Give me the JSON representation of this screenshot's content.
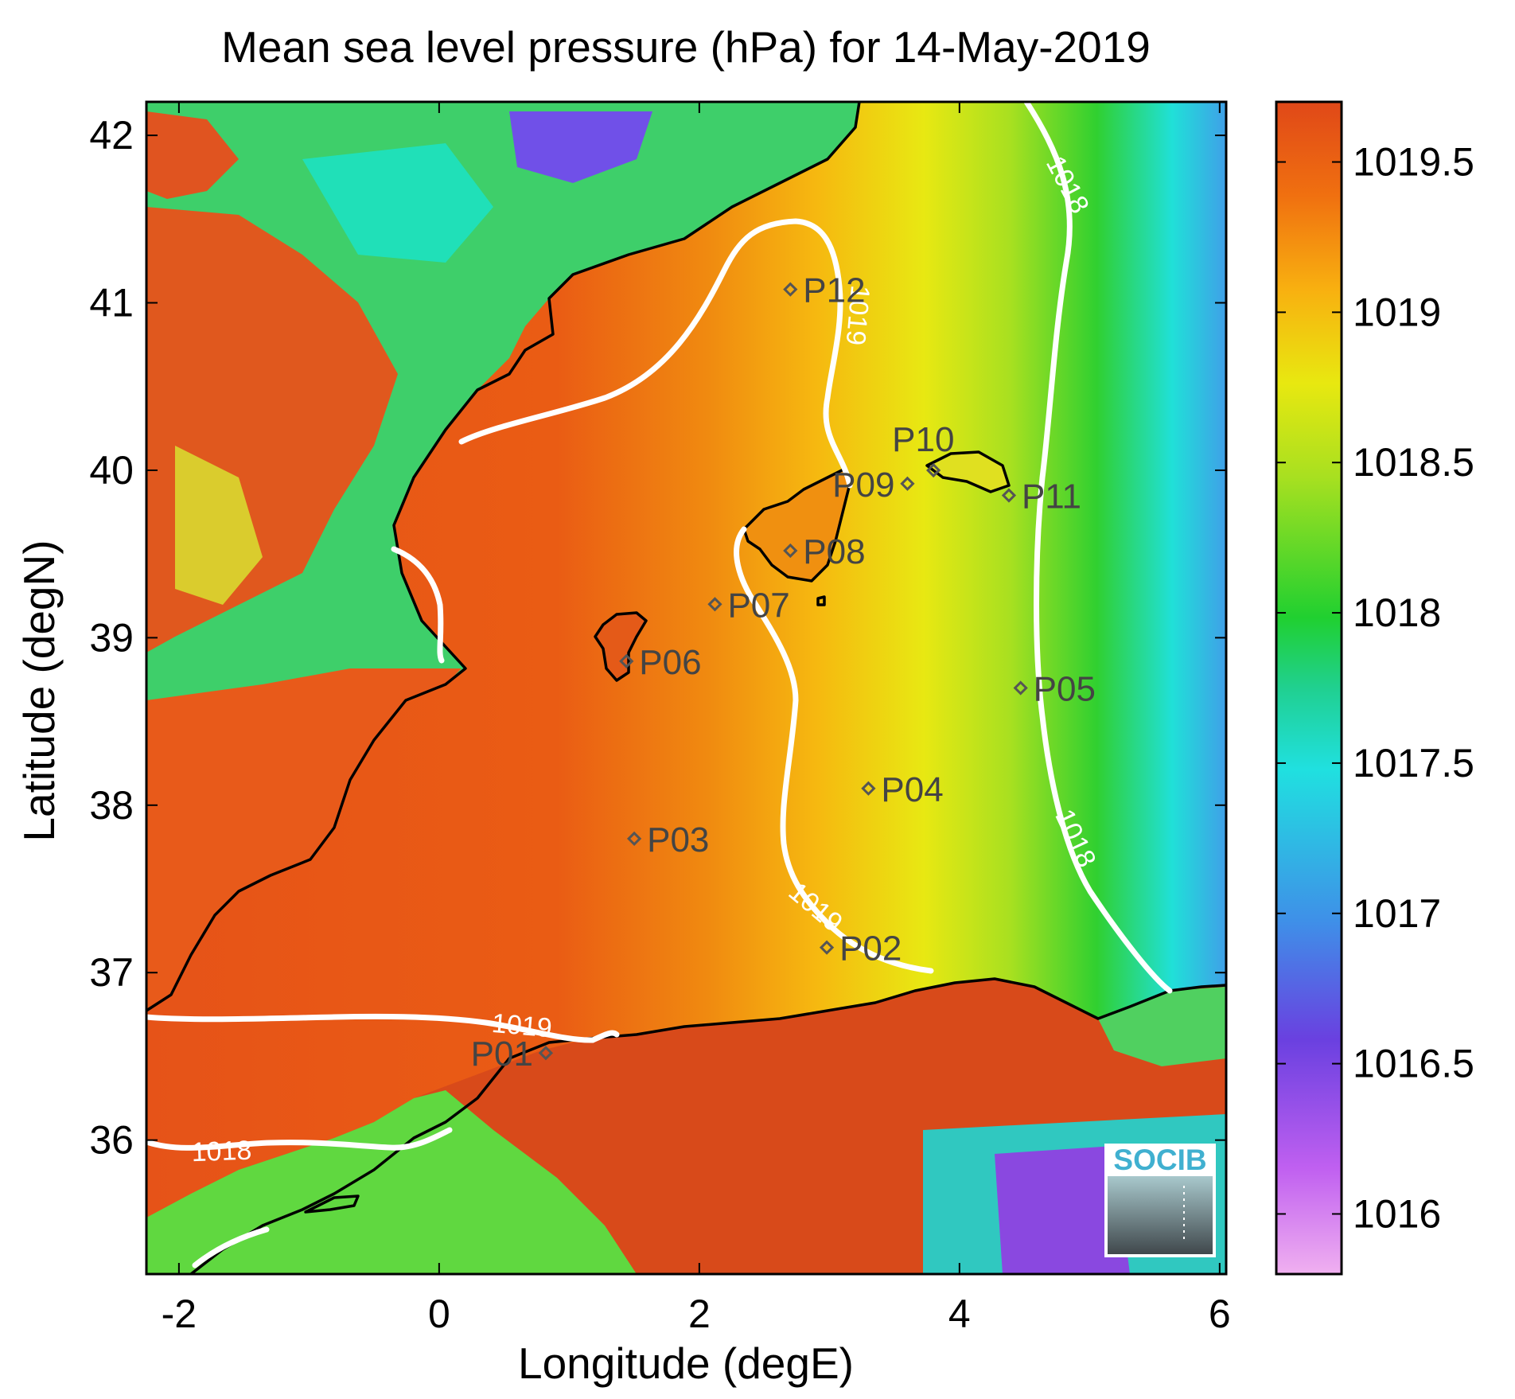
{
  "title": "Mean sea level pressure (hPa) for 14-May-2019",
  "axes": {
    "xlabel": "Longitude (degE)",
    "ylabel": "Latitude (degN)",
    "xlim": [
      -2.25,
      6.05
    ],
    "ylim": [
      35.2,
      42.2
    ],
    "xticks": [
      -2,
      0,
      2,
      4,
      6
    ],
    "yticks": [
      36,
      37,
      38,
      39,
      40,
      41,
      42
    ],
    "xtick_labels": [
      "-2",
      "0",
      "2",
      "4",
      "6"
    ],
    "ytick_labels": [
      "36",
      "37",
      "38",
      "39",
      "40",
      "41",
      "42"
    ]
  },
  "colorbar": {
    "range": [
      1015.8,
      1019.7
    ],
    "ticks": [
      1016,
      1016.5,
      1017,
      1017.5,
      1018,
      1018.5,
      1019,
      1019.5
    ],
    "tick_labels": [
      "1016",
      "1016.5",
      "1017",
      "1017.5",
      "1018",
      "1018.5",
      "1019",
      "1019.5"
    ],
    "colormap": [
      "#f0b0f0",
      "#b040f0",
      "#6040e0",
      "#3f8fe8",
      "#20e0e0",
      "#20d090",
      "#20d030",
      "#a0e020",
      "#e8e810",
      "#f8b010",
      "#f07010",
      "#e04818"
    ]
  },
  "stations": [
    {
      "id": "P01",
      "label": "P01",
      "lon": 0.82,
      "lat": 36.52,
      "label_side": "left"
    },
    {
      "id": "P02",
      "label": "P02",
      "lon": 2.98,
      "lat": 37.15,
      "label_side": "right"
    },
    {
      "id": "P03",
      "label": "P03",
      "lon": 1.5,
      "lat": 37.8,
      "label_side": "right"
    },
    {
      "id": "P04",
      "label": "P04",
      "lon": 3.3,
      "lat": 38.1,
      "label_side": "right"
    },
    {
      "id": "P05",
      "label": "P05",
      "lon": 4.47,
      "lat": 38.7,
      "label_side": "right"
    },
    {
      "id": "P06",
      "label": "P06",
      "lon": 1.44,
      "lat": 38.86,
      "label_side": "right"
    },
    {
      "id": "P07",
      "label": "P07",
      "lon": 2.12,
      "lat": 39.2,
      "label_side": "right"
    },
    {
      "id": "P08",
      "label": "P08",
      "lon": 2.7,
      "lat": 39.52,
      "label_side": "right"
    },
    {
      "id": "P09",
      "label": "P09",
      "lon": 3.6,
      "lat": 39.92,
      "label_side": "left"
    },
    {
      "id": "P10",
      "label": "P10",
      "lon": 3.8,
      "lat": 40.0,
      "label_side": "above"
    },
    {
      "id": "P11",
      "label": "P11",
      "lon": 4.38,
      "lat": 39.85,
      "label_side": "right"
    },
    {
      "id": "P12",
      "label": "P12",
      "lon": 2.7,
      "lat": 41.08,
      "label_side": "right"
    }
  ],
  "contours": [
    {
      "level": "1018",
      "label": "1018"
    },
    {
      "level": "1019",
      "label": "1019"
    }
  ],
  "contour_labels": [
    {
      "text": "1018",
      "lon": 4.77,
      "lat": 41.68,
      "angle": 62
    },
    {
      "text": "1018",
      "lon": 4.83,
      "lat": 37.78,
      "angle": 65
    },
    {
      "text": "1018",
      "lon": -1.67,
      "lat": 35.88,
      "angle": -2
    },
    {
      "text": "1019",
      "lon": 0.63,
      "lat": 36.63,
      "angle": 5
    },
    {
      "text": "1019",
      "lon": 3.15,
      "lat": 40.93,
      "angle": 95
    },
    {
      "text": "1019",
      "lon": 2.85,
      "lat": 37.35,
      "angle": 40
    }
  ],
  "logo": {
    "text": "SOCIB"
  },
  "colors": {
    "coastline": "#000000",
    "contour": "#ffffff",
    "station_marker": "#555555",
    "station_label": "#444444",
    "logo_text": "#40b0d0"
  }
}
